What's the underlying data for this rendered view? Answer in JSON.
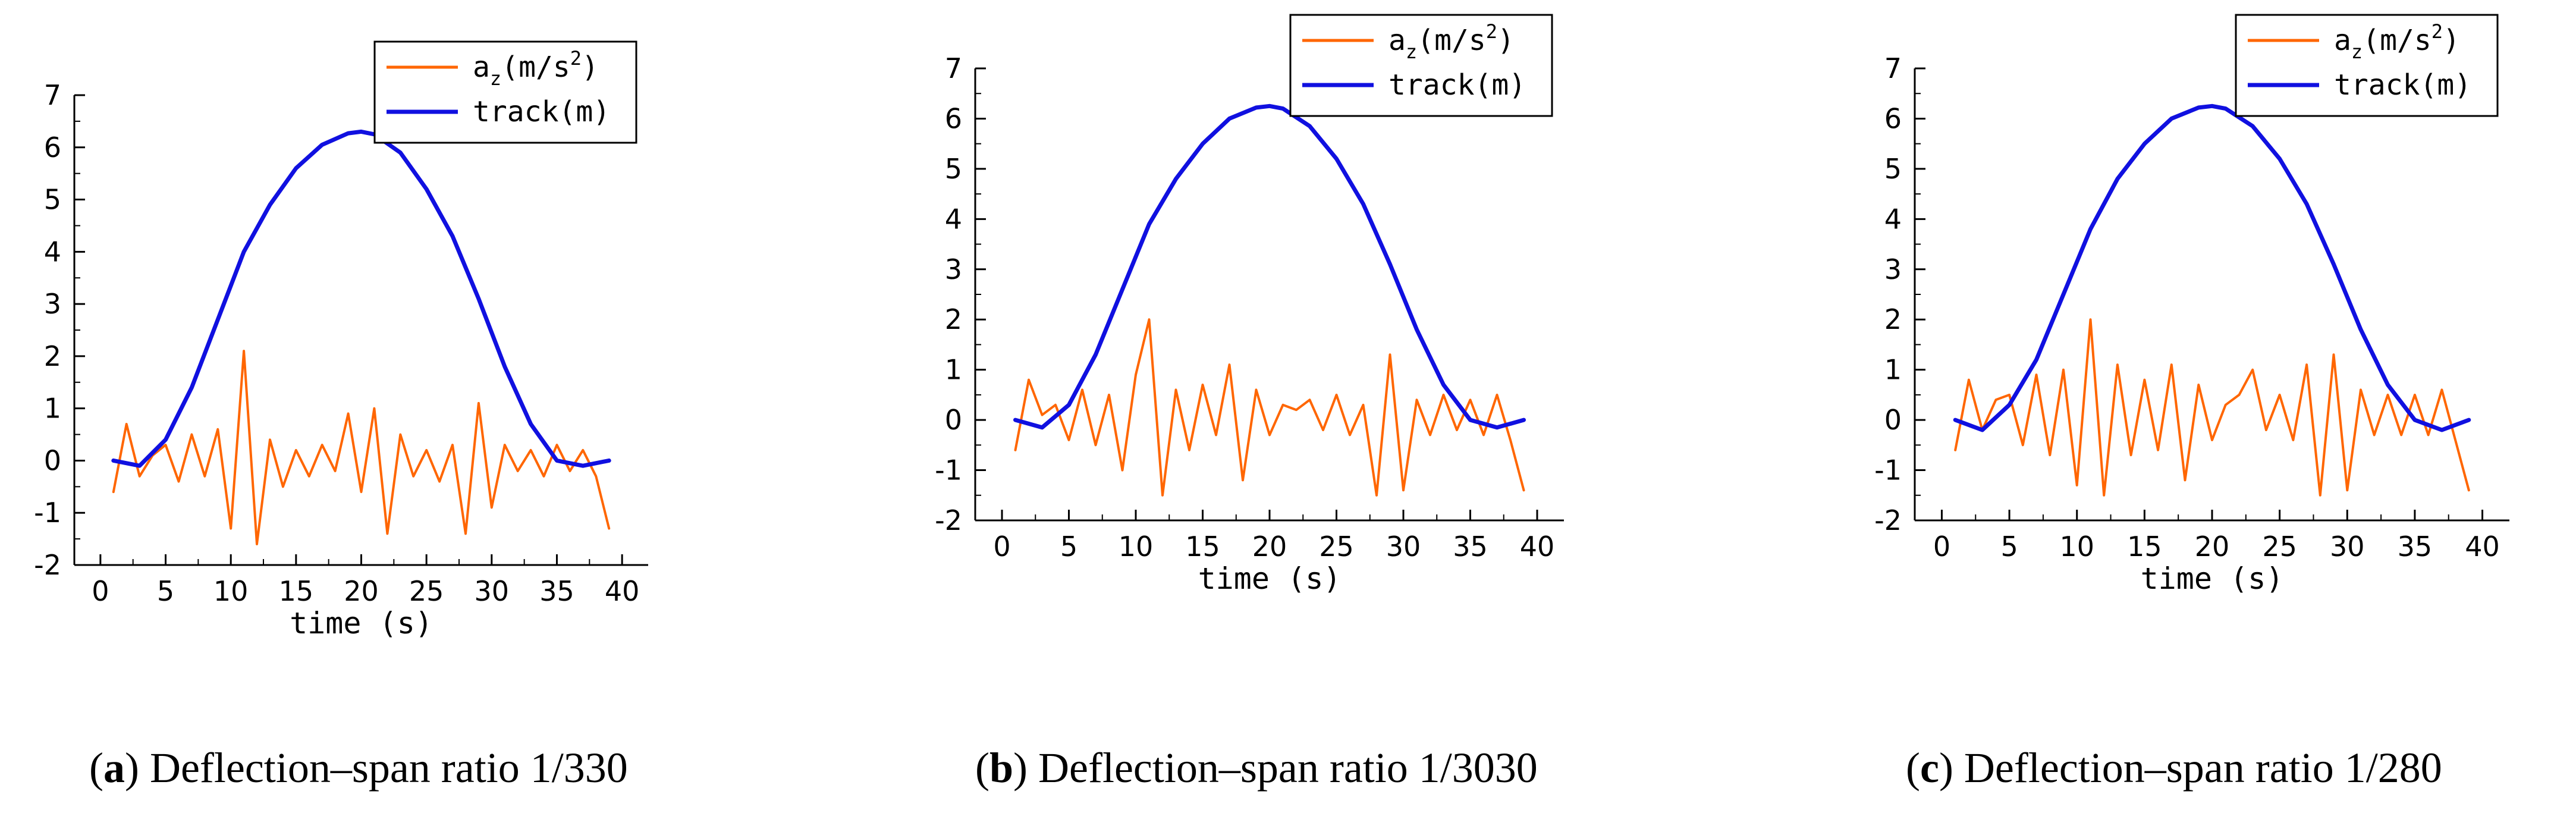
{
  "colors": {
    "acceleration": "#ff6600",
    "track": "#1010e0",
    "axis": "#000000"
  },
  "chart_data": [
    {
      "type": "line",
      "caption_letter": "a",
      "caption_text": ") Deflection–span ratio 1/330",
      "caption_open": "(",
      "xlabel": "time (s)",
      "xlim": [
        -2,
        42
      ],
      "ylim": [
        -2,
        7
      ],
      "xticks": [
        0,
        5,
        10,
        15,
        20,
        25,
        30,
        35,
        40
      ],
      "yticks": [
        -2,
        -1,
        0,
        1,
        2,
        3,
        4,
        5,
        6,
        7
      ],
      "legend_placement": "top-right",
      "series": [
        {
          "name": "a",
          "name_sub": "z",
          "name_rest": "(m/s",
          "name_sup": "2",
          "name_end": ")",
          "role": "acceleration",
          "x": [
            1,
            2,
            3,
            4,
            5,
            6,
            7,
            8,
            9,
            10,
            11,
            12,
            13,
            14,
            15,
            16,
            17,
            18,
            19,
            20,
            21,
            22,
            23,
            24,
            25,
            26,
            27,
            28,
            29,
            30,
            31,
            32,
            33,
            34,
            35,
            36,
            37,
            38,
            39
          ],
          "y": [
            -0.6,
            0.7,
            -0.3,
            0.1,
            0.3,
            -0.4,
            0.5,
            -0.3,
            0.6,
            -1.3,
            2.1,
            -1.6,
            0.4,
            -0.5,
            0.2,
            -0.3,
            0.3,
            -0.2,
            0.9,
            -0.6,
            1.0,
            -1.4,
            0.5,
            -0.3,
            0.2,
            -0.4,
            0.3,
            -1.4,
            1.1,
            -0.9,
            0.3,
            -0.2,
            0.2,
            -0.3,
            0.3,
            -0.2,
            0.2,
            -0.3,
            -1.3
          ]
        },
        {
          "name": "track(m)",
          "role": "track",
          "x": [
            1,
            3,
            5,
            7,
            9,
            11,
            13,
            15,
            17,
            19,
            20,
            21,
            23,
            25,
            27,
            29,
            31,
            33,
            35,
            37,
            39
          ],
          "y": [
            0.0,
            -0.1,
            0.4,
            1.4,
            2.7,
            4.0,
            4.9,
            5.6,
            6.05,
            6.27,
            6.3,
            6.25,
            5.9,
            5.2,
            4.3,
            3.1,
            1.8,
            0.7,
            0.0,
            -0.1,
            0.0
          ]
        }
      ]
    },
    {
      "type": "line",
      "caption_letter": "b",
      "caption_text": ") Deflection–span ratio 1/3030",
      "caption_open": "(",
      "xlabel": "time (s)",
      "xlim": [
        -2,
        42
      ],
      "ylim": [
        -2,
        7
      ],
      "xticks": [
        0,
        5,
        10,
        15,
        20,
        25,
        30,
        35,
        40
      ],
      "yticks": [
        -2,
        -1,
        0,
        1,
        2,
        3,
        4,
        5,
        6,
        7
      ],
      "legend_placement": "top-right",
      "series": [
        {
          "name": "a",
          "name_sub": "z",
          "name_rest": "(m/s",
          "name_sup": "2",
          "name_end": ")",
          "role": "acceleration",
          "x": [
            1,
            2,
            3,
            4,
            5,
            6,
            7,
            8,
            9,
            10,
            11,
            12,
            13,
            14,
            15,
            16,
            17,
            18,
            19,
            20,
            21,
            22,
            23,
            24,
            25,
            26,
            27,
            28,
            29,
            30,
            31,
            32,
            33,
            34,
            35,
            36,
            37,
            38,
            39
          ],
          "y": [
            -0.6,
            0.8,
            0.1,
            0.3,
            -0.4,
            0.6,
            -0.5,
            0.5,
            -1.0,
            0.9,
            2.0,
            -1.5,
            0.6,
            -0.6,
            0.7,
            -0.3,
            1.1,
            -1.2,
            0.6,
            -0.3,
            0.3,
            0.2,
            0.4,
            -0.2,
            0.5,
            -0.3,
            0.3,
            -1.5,
            1.3,
            -1.4,
            0.4,
            -0.3,
            0.5,
            -0.2,
            0.4,
            -0.3,
            0.5,
            -0.4,
            -1.4
          ]
        },
        {
          "name": "track(m)",
          "role": "track",
          "x": [
            1,
            3,
            5,
            7,
            9,
            11,
            13,
            15,
            17,
            19,
            20,
            21,
            23,
            25,
            27,
            29,
            31,
            33,
            35,
            37,
            39
          ],
          "y": [
            0.0,
            -0.15,
            0.3,
            1.3,
            2.6,
            3.9,
            4.8,
            5.5,
            6.0,
            6.22,
            6.25,
            6.2,
            5.85,
            5.2,
            4.3,
            3.1,
            1.8,
            0.7,
            0.0,
            -0.15,
            0.0
          ]
        }
      ]
    },
    {
      "type": "line",
      "caption_letter": "c",
      "caption_text": ") Deflection–span ratio 1/280",
      "caption_open": "(",
      "xlabel": "time (s)",
      "xlim": [
        -2,
        42
      ],
      "ylim": [
        -2,
        7
      ],
      "xticks": [
        0,
        5,
        10,
        15,
        20,
        25,
        30,
        35,
        40
      ],
      "yticks": [
        -2,
        -1,
        0,
        1,
        2,
        3,
        4,
        5,
        6,
        7
      ],
      "legend_placement": "top-right",
      "series": [
        {
          "name": "a",
          "name_sub": "z",
          "name_rest": "(m/s",
          "name_sup": "2",
          "name_end": ")",
          "role": "acceleration",
          "x": [
            1,
            2,
            3,
            4,
            5,
            6,
            7,
            8,
            9,
            10,
            11,
            12,
            13,
            14,
            15,
            16,
            17,
            18,
            19,
            20,
            21,
            22,
            23,
            24,
            25,
            26,
            27,
            28,
            29,
            30,
            31,
            32,
            33,
            34,
            35,
            36,
            37,
            38,
            39
          ],
          "y": [
            -0.6,
            0.8,
            -0.2,
            0.4,
            0.5,
            -0.5,
            0.9,
            -0.7,
            1.0,
            -1.3,
            2.0,
            -1.5,
            1.1,
            -0.7,
            0.8,
            -0.6,
            1.1,
            -1.2,
            0.7,
            -0.4,
            0.3,
            0.5,
            1.0,
            -0.2,
            0.5,
            -0.4,
            1.1,
            -1.5,
            1.3,
            -1.4,
            0.6,
            -0.3,
            0.5,
            -0.3,
            0.5,
            -0.3,
            0.6,
            -0.4,
            -1.4
          ]
        },
        {
          "name": "track(m)",
          "role": "track",
          "x": [
            1,
            3,
            5,
            7,
            9,
            11,
            13,
            15,
            17,
            19,
            20,
            21,
            23,
            25,
            27,
            29,
            31,
            33,
            35,
            37,
            39
          ],
          "y": [
            0.0,
            -0.2,
            0.3,
            1.2,
            2.5,
            3.8,
            4.8,
            5.5,
            6.0,
            6.22,
            6.25,
            6.2,
            5.85,
            5.2,
            4.3,
            3.1,
            1.8,
            0.7,
            0.0,
            -0.2,
            0.0
          ]
        }
      ]
    }
  ]
}
